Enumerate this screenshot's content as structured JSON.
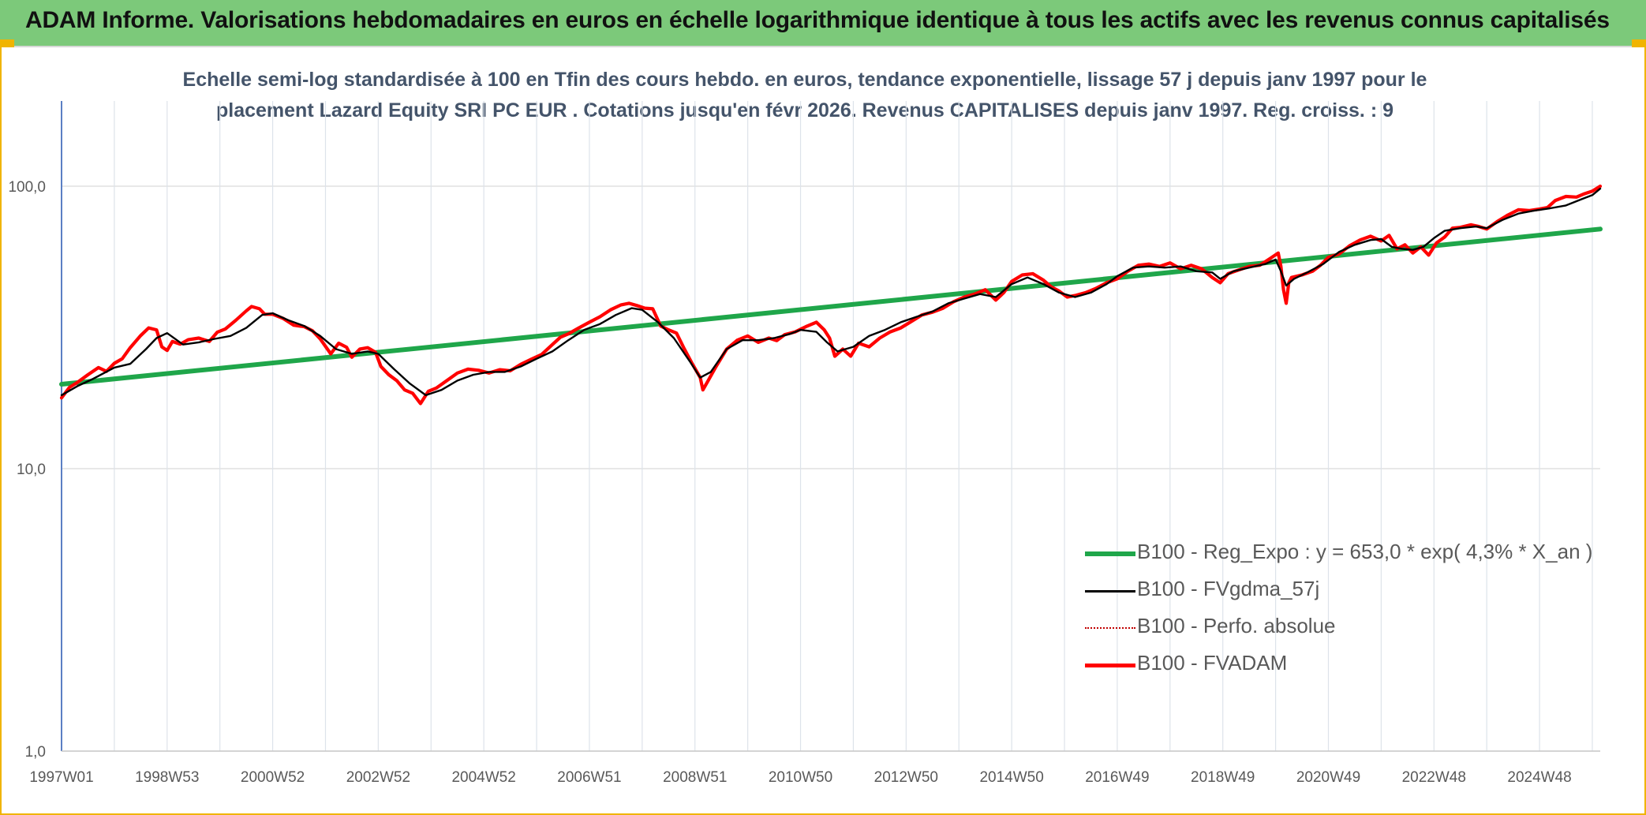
{
  "banner": {
    "title": "ADAM Informe. Valorisations hebdomadaires en euros en échelle logarithmique identique à tous les actifs avec les revenus connus capitalisés"
  },
  "colors": {
    "banner_bg": "#7cc97a",
    "frame_accent": "#f0b400",
    "title_text": "#44546a",
    "regression": "#1fa64a",
    "smoothed": "#000000",
    "perf_absolue": "#c00000",
    "fvadam": "#ff0000"
  },
  "chart_data": {
    "type": "line",
    "title_lines": [
      "Echelle semi-log standardisée à 100 en Tfin des cours hebdo. en euros, tendance exponentielle, lissage 57 j depuis janv 1997 pour le",
      "placement Lazard Equity SRI PC EUR . Cotations jusqu'en févr 2026. Revenus CAPITALISES depuis janv 1997. Reg. croiss. : 9"
    ],
    "y_scale": "log",
    "ylim": [
      1,
      100
    ],
    "xlim": [
      1997.0,
      2026.15
    ],
    "grid": true,
    "legend_position": "right-middle",
    "y_ticks": [
      {
        "value": 1,
        "label": "1,0"
      },
      {
        "value": 10,
        "label": "10,0"
      },
      {
        "value": 100,
        "label": "100,0"
      }
    ],
    "x_ticks": [
      {
        "value": 1997.0,
        "label": "1997W01"
      },
      {
        "value": 1999.0,
        "label": "1998W53"
      },
      {
        "value": 2001.0,
        "label": "2000W52"
      },
      {
        "value": 2003.0,
        "label": "2002W52"
      },
      {
        "value": 2005.0,
        "label": "2004W52"
      },
      {
        "value": 2007.0,
        "label": "2006W51"
      },
      {
        "value": 2009.0,
        "label": "2008W51"
      },
      {
        "value": 2011.0,
        "label": "2010W50"
      },
      {
        "value": 2013.0,
        "label": "2012W50"
      },
      {
        "value": 2015.0,
        "label": "2014W50"
      },
      {
        "value": 2017.0,
        "label": "2016W49"
      },
      {
        "value": 2019.0,
        "label": "2018W49"
      },
      {
        "value": 2021.0,
        "label": "2020W49"
      },
      {
        "value": 2023.0,
        "label": "2022W48"
      },
      {
        "value": 2025.0,
        "label": "2024W48"
      }
    ],
    "minor_gridlines_x": [
      1998.0,
      2000.0,
      2002.0,
      2004.0,
      2006.0,
      2008.0,
      2010.0,
      2012.0,
      2014.0,
      2016.0,
      2018.0,
      2020.0,
      2022.0,
      2024.0,
      2026.0
    ],
    "series": [
      {
        "name": "B100 - Reg_Expo : y = 653,0 * exp( 4,3% *  X_an )",
        "kind": "regression",
        "x": [
          1997.0,
          2026.15
        ],
        "y": [
          19.9,
          70.5
        ]
      },
      {
        "name": "B100 - FVgdma_57j",
        "kind": "smoothed",
        "x": [
          1997.0,
          1997.3,
          1997.6,
          1998.0,
          1998.3,
          1998.6,
          1998.8,
          1999.0,
          1999.3,
          1999.6,
          1999.9,
          2000.2,
          2000.5,
          2000.8,
          2001.0,
          2001.3,
          2001.6,
          2001.9,
          2002.2,
          2002.5,
          2002.8,
          2003.0,
          2003.3,
          2003.6,
          2003.9,
          2004.2,
          2004.5,
          2004.8,
          2005.1,
          2005.4,
          2005.7,
          2006.0,
          2006.3,
          2006.6,
          2006.9,
          2007.2,
          2007.5,
          2007.8,
          2008.0,
          2008.3,
          2008.6,
          2008.9,
          2009.1,
          2009.3,
          2009.6,
          2009.9,
          2010.2,
          2010.5,
          2010.8,
          2011.0,
          2011.3,
          2011.5,
          2011.7,
          2012.0,
          2012.3,
          2012.6,
          2012.9,
          2013.2,
          2013.5,
          2013.8,
          2014.1,
          2014.4,
          2014.7,
          2015.0,
          2015.3,
          2015.6,
          2015.9,
          2016.2,
          2016.5,
          2016.8,
          2017.0,
          2017.3,
          2017.6,
          2017.9,
          2018.2,
          2018.5,
          2018.8,
          2018.95,
          2019.2,
          2019.5,
          2019.8,
          2020.0,
          2020.1,
          2020.2,
          2020.35,
          2020.6,
          2020.9,
          2021.2,
          2021.5,
          2021.8,
          2022.0,
          2022.2,
          2022.4,
          2022.6,
          2022.8,
          2023.0,
          2023.2,
          2023.5,
          2023.8,
          2024.0,
          2024.3,
          2024.6,
          2024.9,
          2025.2,
          2025.5,
          2025.8,
          2026.0,
          2026.15
        ],
        "y": [
          18.2,
          19.6,
          20.8,
          22.8,
          23.5,
          26.5,
          29.0,
          30.2,
          27.5,
          28.0,
          28.8,
          29.5,
          31.5,
          35.0,
          35.5,
          33.5,
          32.0,
          29.5,
          26.5,
          25.5,
          26.0,
          25.5,
          22.5,
          20.0,
          18.2,
          19.0,
          20.5,
          21.5,
          22.0,
          22.0,
          23.0,
          24.5,
          26.0,
          28.5,
          31.0,
          32.5,
          35.0,
          37.0,
          36.5,
          33.0,
          29.0,
          24.0,
          21.0,
          22.0,
          26.5,
          28.5,
          28.5,
          29.0,
          30.0,
          31.0,
          30.5,
          28.0,
          26.0,
          27.0,
          29.5,
          31.0,
          33.0,
          34.5,
          36.0,
          38.5,
          40.0,
          41.5,
          40.5,
          45.0,
          47.5,
          45.0,
          42.0,
          40.5,
          42.0,
          45.0,
          48.0,
          51.5,
          52.0,
          51.5,
          52.0,
          50.0,
          49.5,
          47.0,
          50.0,
          51.5,
          53.0,
          55.0,
          50.0,
          44.5,
          47.0,
          49.5,
          53.0,
          58.5,
          62.0,
          64.5,
          65.0,
          61.0,
          60.0,
          59.5,
          61.0,
          65.5,
          69.5,
          71.0,
          72.0,
          71.0,
          76.0,
          80.0,
          82.0,
          83.5,
          85.5,
          90.0,
          93.0,
          98.0
        ]
      },
      {
        "name": "B100 - Perfo. absolue",
        "kind": "absolute",
        "x": [],
        "y": []
      },
      {
        "name": "B100 - FVADAM",
        "kind": "fvadam",
        "x": [
          1997.0,
          1997.15,
          1997.3,
          1997.5,
          1997.7,
          1997.85,
          1998.0,
          1998.15,
          1998.3,
          1998.5,
          1998.65,
          1998.8,
          1998.9,
          1999.0,
          1999.1,
          1999.25,
          1999.4,
          1999.6,
          1999.8,
          1999.95,
          2000.1,
          2000.3,
          2000.5,
          2000.6,
          2000.75,
          2000.85,
          2001.0,
          2001.2,
          2001.4,
          2001.6,
          2001.75,
          2001.9,
          2002.1,
          2002.25,
          2002.4,
          2002.5,
          2002.65,
          2002.8,
          2002.95,
          2003.05,
          2003.2,
          2003.35,
          2003.5,
          2003.65,
          2003.8,
          2003.95,
          2004.1,
          2004.3,
          2004.5,
          2004.7,
          2004.9,
          2005.1,
          2005.3,
          2005.5,
          2005.7,
          2005.9,
          2006.1,
          2006.3,
          2006.45,
          2006.6,
          2006.8,
          2007.0,
          2007.2,
          2007.4,
          2007.6,
          2007.75,
          2007.9,
          2008.05,
          2008.2,
          2008.35,
          2008.5,
          2008.65,
          2008.8,
          2008.95,
          2009.1,
          2009.15,
          2009.25,
          2009.4,
          2009.6,
          2009.8,
          2010.0,
          2010.2,
          2010.4,
          2010.55,
          2010.7,
          2010.9,
          2011.1,
          2011.3,
          2011.45,
          2011.55,
          2011.65,
          2011.8,
          2011.95,
          2012.1,
          2012.3,
          2012.5,
          2012.7,
          2012.9,
          2013.1,
          2013.3,
          2013.5,
          2013.7,
          2013.9,
          2014.1,
          2014.3,
          2014.5,
          2014.7,
          2014.85,
          2015.0,
          2015.2,
          2015.4,
          2015.6,
          2015.75,
          2015.9,
          2016.05,
          2016.2,
          2016.4,
          2016.6,
          2016.8,
          2017.0,
          2017.2,
          2017.4,
          2017.6,
          2017.8,
          2018.0,
          2018.2,
          2018.4,
          2018.6,
          2018.8,
          2018.95,
          2019.1,
          2019.3,
          2019.5,
          2019.7,
          2019.9,
          2020.05,
          2020.1,
          2020.15,
          2020.2,
          2020.25,
          2020.3,
          2020.5,
          2020.7,
          2020.85,
          2021.0,
          2021.2,
          2021.4,
          2021.6,
          2021.8,
          2022.0,
          2022.15,
          2022.3,
          2022.45,
          2022.6,
          2022.75,
          2022.9,
          2023.05,
          2023.2,
          2023.35,
          2023.5,
          2023.7,
          2023.85,
          2024.0,
          2024.2,
          2024.4,
          2024.6,
          2024.8,
          2025.0,
          2025.15,
          2025.3,
          2025.5,
          2025.7,
          2025.85,
          2026.0,
          2026.15
        ],
        "y": [
          17.8,
          19.4,
          20.2,
          21.5,
          22.8,
          22.1,
          23.6,
          24.5,
          26.8,
          29.6,
          31.5,
          31.0,
          27.0,
          26.2,
          28.2,
          27.6,
          28.6,
          29.0,
          28.2,
          30.4,
          31.2,
          33.5,
          36.2,
          37.5,
          36.8,
          35.2,
          35.2,
          34.0,
          32.2,
          31.8,
          30.8,
          28.8,
          25.5,
          27.8,
          26.9,
          24.8,
          26.5,
          26.8,
          25.8,
          23.0,
          21.5,
          20.5,
          19.0,
          18.5,
          17.0,
          18.8,
          19.3,
          20.5,
          21.8,
          22.5,
          22.3,
          21.8,
          22.4,
          22.2,
          23.4,
          24.4,
          25.4,
          27.5,
          29.2,
          30.0,
          31.5,
          33.0,
          34.5,
          36.5,
          38.0,
          38.5,
          37.8,
          37.0,
          36.8,
          32.0,
          31.0,
          30.2,
          26.5,
          23.5,
          21.0,
          19.0,
          20.5,
          23.0,
          26.5,
          28.5,
          29.5,
          28.0,
          29.0,
          28.4,
          29.8,
          30.5,
          31.8,
          33.0,
          31.0,
          29.0,
          25.0,
          26.5,
          25.0,
          27.8,
          27.0,
          29.0,
          30.5,
          31.5,
          33.2,
          35.0,
          35.8,
          37.0,
          39.0,
          40.5,
          41.5,
          43.0,
          39.5,
          42.0,
          46.0,
          48.5,
          49.0,
          46.5,
          44.0,
          42.5,
          40.5,
          41.0,
          42.0,
          43.5,
          45.5,
          47.0,
          50.0,
          52.5,
          53.0,
          52.0,
          53.5,
          51.0,
          52.5,
          51.0,
          47.5,
          45.5,
          49.0,
          50.5,
          52.0,
          52.5,
          55.5,
          58.0,
          52.0,
          43.0,
          38.5,
          45.5,
          47.5,
          48.5,
          50.0,
          52.5,
          56.0,
          57.5,
          61.5,
          64.5,
          66.5,
          64.0,
          67.0,
          60.0,
          62.0,
          58.0,
          61.0,
          57.0,
          63.0,
          66.0,
          71.0,
          71.5,
          73.0,
          72.0,
          70.5,
          75.0,
          79.0,
          82.5,
          82.0,
          83.0,
          84.0,
          89.0,
          92.0,
          91.5,
          94.0,
          96.0,
          100.0
        ]
      }
    ]
  }
}
